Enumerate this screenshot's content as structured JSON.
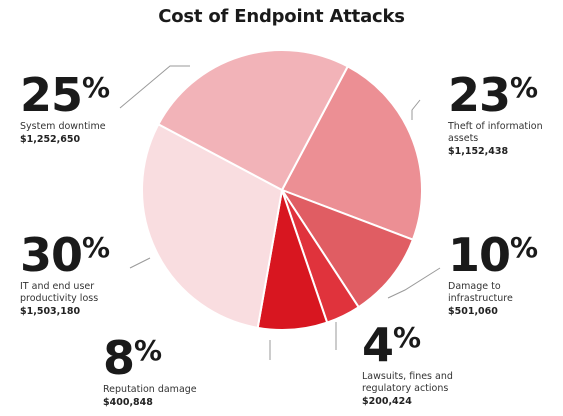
{
  "chart_data": {
    "type": "pie",
    "title": "Cost of Endpoint Attacks",
    "slices": [
      {
        "label": "Theft of information assets",
        "percent_label": "23",
        "value": 1152438,
        "amount_label": "$1,152,438",
        "color": "#ec8f94"
      },
      {
        "label": "Damage to infrastructure",
        "percent_label": "10",
        "value": 501060,
        "amount_label": "$501,060",
        "color": "#e05d63"
      },
      {
        "label": "Lawsuits, fines and regulatory actions",
        "percent_label": "4",
        "value": 200424,
        "amount_label": "$200,424",
        "color": "#e0333c"
      },
      {
        "label": "Reputation damage",
        "percent_label": "8",
        "value": 400848,
        "amount_label": "$400,848",
        "color": "#d81620"
      },
      {
        "label": "IT and end user productivity loss",
        "percent_label": "30",
        "value": 1503180,
        "amount_label": "$1,503,180",
        "color": "#f9dde0"
      },
      {
        "label": "System downtime",
        "percent_label": "25",
        "value": 1252650,
        "amount_label": "$1,252,650",
        "color": "#f2b3b8"
      }
    ]
  }
}
